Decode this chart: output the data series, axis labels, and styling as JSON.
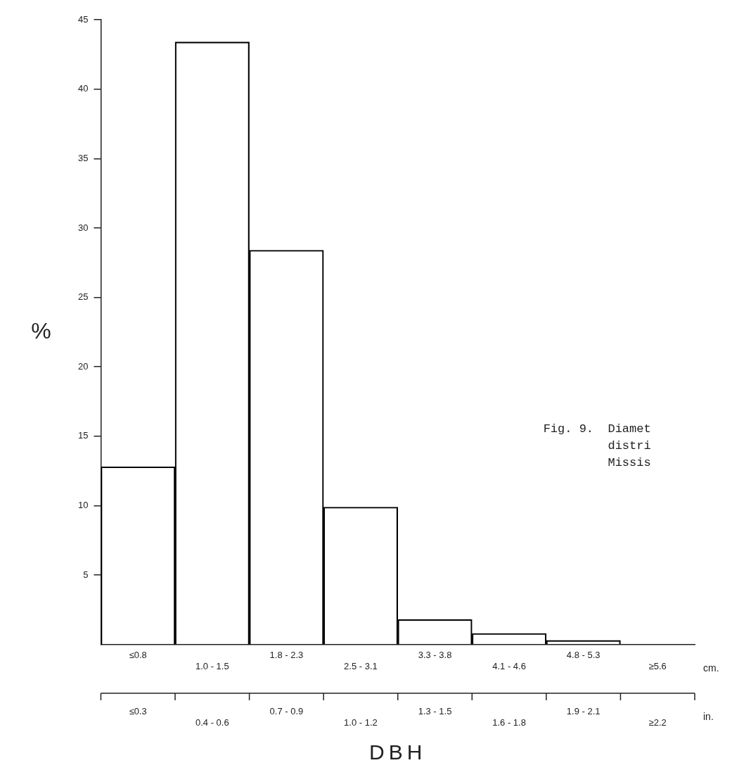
{
  "chart_data": {
    "type": "bar",
    "ylabel": "%",
    "xlabel": "DBH",
    "categories": [
      "≤0.8",
      "1.0 - 1.5",
      "1.8 - 2.3",
      "2.5 - 3.1",
      "3.3 - 3.8",
      "4.1 - 4.6",
      "4.8 - 5.3",
      "≥5.6"
    ],
    "values": [
      12.8,
      43.4,
      28.4,
      9.9,
      1.8,
      0.8,
      0.3,
      null
    ],
    "color": "#000000",
    "ylim": [
      0,
      45
    ],
    "yticks": [
      5,
      10,
      15,
      20,
      25,
      30,
      35,
      40,
      45
    ],
    "annotations": [
      "cm.",
      "≤0.3",
      "0.4 - 0.6",
      "0.7 - 0.9",
      "1.0 - 1.2",
      "1.3 - 1.5",
      "1.6 - 1.8",
      "1.9 - 2.1",
      "≥2.2",
      "in.",
      "Fig. 9.  Diamet",
      "distri",
      "Missis"
    ],
    "grid": false,
    "legend": false
  }
}
